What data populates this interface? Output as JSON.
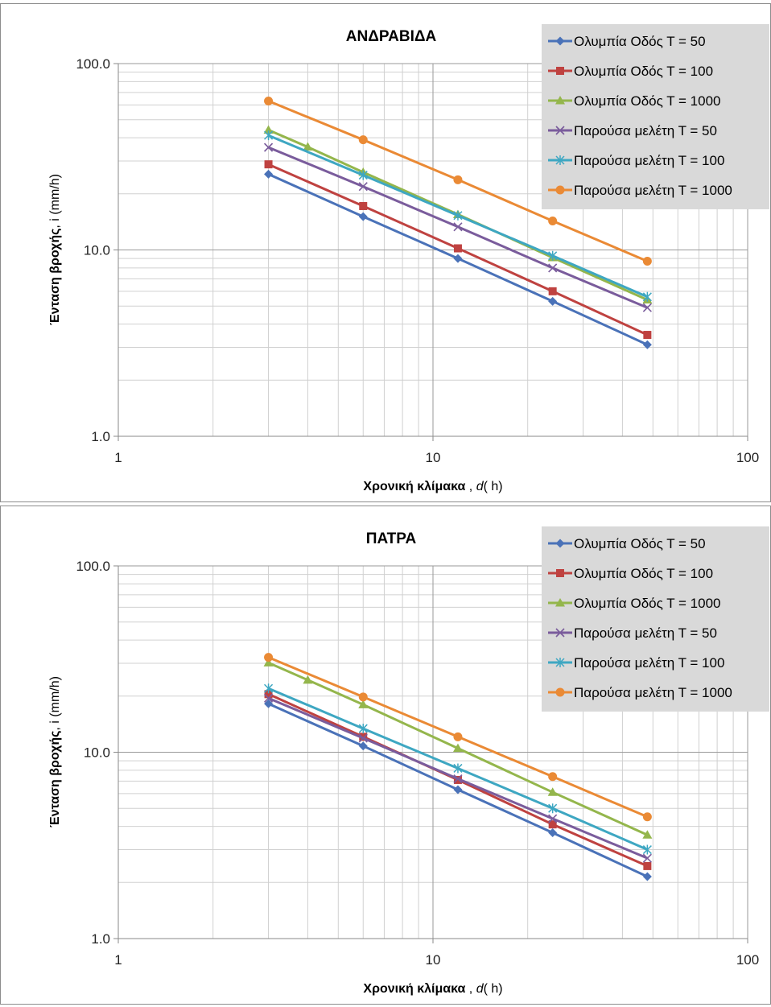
{
  "chart_data": [
    {
      "type": "line",
      "title": "ΑΝΔΡΑΒΙΔΑ",
      "xlabel": {
        "bold": "Χρονική κλίμακα",
        "rest": " , ",
        "italic": "d",
        "unit": "( h)"
      },
      "ylabel": {
        "bold": "Ένταση βροχής",
        "rest": ", i (mm/h)"
      },
      "xscale": "log",
      "yscale": "log",
      "xlim": [
        1,
        100
      ],
      "ylim": [
        1,
        100
      ],
      "xticks": [
        1,
        10,
        100
      ],
      "xtick_labels": [
        "1",
        "10",
        "100"
      ],
      "yticks": [
        1,
        10,
        100
      ],
      "ytick_labels": [
        "1.0",
        "10.0",
        "100.0"
      ],
      "grid": true,
      "legend": "top-right",
      "series": [
        {
          "name": "Ολυμπία Οδός Τ = 50",
          "color": "#4a72b8",
          "marker": "diamond",
          "x": [
            3,
            6,
            12,
            24,
            48
          ],
          "y": [
            25.5,
            15.1,
            9.0,
            5.3,
            3.1
          ]
        },
        {
          "name": "Ολυμπία Οδός Τ = 100",
          "color": "#bf4240",
          "marker": "square",
          "x": [
            3,
            6,
            12,
            24,
            48
          ],
          "y": [
            28.8,
            17.2,
            10.2,
            6.0,
            3.5
          ]
        },
        {
          "name": "Ολυμπία Οδός Τ = 1000",
          "color": "#94b64c",
          "marker": "triangle",
          "x": [
            3,
            4,
            6,
            12,
            24,
            48
          ],
          "y": [
            44.0,
            35.7,
            26.1,
            15.5,
            9.1,
            5.4
          ]
        },
        {
          "name": "Παρούσα μελέτη Τ = 50",
          "color": "#7a5c9c",
          "marker": "x",
          "x": [
            3,
            6,
            12,
            24,
            48
          ],
          "y": [
            35.5,
            21.9,
            13.3,
            8.0,
            4.9
          ]
        },
        {
          "name": "Παρούσα μελέτη Τ = 100",
          "color": "#3ea7c2",
          "marker": "star",
          "x": [
            3,
            6,
            12,
            24,
            48
          ],
          "y": [
            41.2,
            25.2,
            15.3,
            9.3,
            5.6
          ]
        },
        {
          "name": "Παρούσα μελέτη Τ = 1000",
          "color": "#ea8a35",
          "marker": "circle",
          "x": [
            3,
            6,
            12,
            24,
            48
          ],
          "y": [
            63.0,
            39.0,
            23.8,
            14.3,
            8.7
          ]
        }
      ]
    },
    {
      "type": "line",
      "title": "ΠΑΤΡΑ",
      "xlabel": {
        "bold": "Χρονική κλίμακα",
        "rest": " , ",
        "italic": "d",
        "unit": "( h)"
      },
      "ylabel": {
        "bold": "Ένταση βροχής",
        "rest": ", i (mm/h)"
      },
      "xscale": "log",
      "yscale": "log",
      "xlim": [
        1,
        100
      ],
      "ylim": [
        1,
        100
      ],
      "xticks": [
        1,
        10,
        100
      ],
      "xtick_labels": [
        "1",
        "10",
        "100"
      ],
      "yticks": [
        1,
        10,
        100
      ],
      "ytick_labels": [
        "1.0",
        "10.0",
        "100.0"
      ],
      "grid": true,
      "legend": "top-right",
      "series": [
        {
          "name": "Ολυμπία Οδός Τ = 50",
          "color": "#4a72b8",
          "marker": "diamond",
          "x": [
            3,
            6,
            12,
            24,
            48
          ],
          "y": [
            18.2,
            10.8,
            6.3,
            3.7,
            2.15
          ]
        },
        {
          "name": "Ολυμπία Οδός Τ = 100",
          "color": "#bf4240",
          "marker": "square",
          "x": [
            3,
            6,
            12,
            24,
            48
          ],
          "y": [
            20.5,
            12.1,
            7.1,
            4.1,
            2.45
          ]
        },
        {
          "name": "Ολυμπία Οδός Τ = 1000",
          "color": "#94b64c",
          "marker": "triangle",
          "x": [
            3,
            4,
            6,
            12,
            24,
            48
          ],
          "y": [
            30.2,
            24.4,
            18.0,
            10.5,
            6.1,
            3.6
          ]
        },
        {
          "name": "Παρούσα μελέτη Τ = 50",
          "color": "#7a5c9c",
          "marker": "x",
          "x": [
            3,
            6,
            12,
            24,
            48
          ],
          "y": [
            19.5,
            11.9,
            7.2,
            4.4,
            2.7
          ]
        },
        {
          "name": "Παρούσα μελέτη Τ = 100",
          "color": "#3ea7c2",
          "marker": "star",
          "x": [
            3,
            6,
            12,
            24,
            48
          ],
          "y": [
            22.0,
            13.4,
            8.2,
            5.0,
            3.0
          ]
        },
        {
          "name": "Παρούσα μελέτη Τ = 1000",
          "color": "#ea8a35",
          "marker": "circle",
          "x": [
            3,
            6,
            12,
            24,
            48
          ],
          "y": [
            32.3,
            19.8,
            12.1,
            7.4,
            4.5
          ]
        }
      ]
    }
  ]
}
